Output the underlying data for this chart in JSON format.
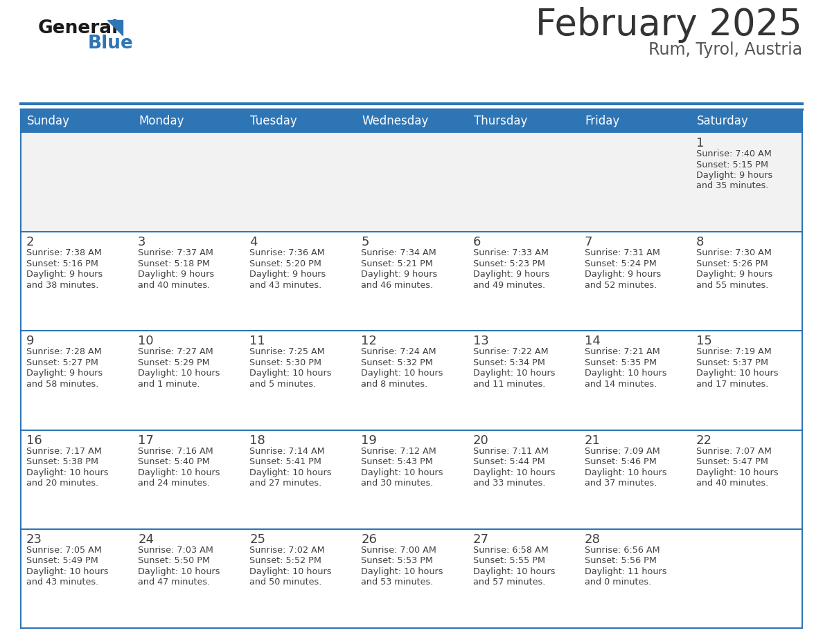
{
  "title": "February 2025",
  "subtitle": "Rum, Tyrol, Austria",
  "days_of_week": [
    "Sunday",
    "Monday",
    "Tuesday",
    "Wednesday",
    "Thursday",
    "Friday",
    "Saturday"
  ],
  "header_bg": "#2E75B6",
  "header_text": "#FFFFFF",
  "cell_bg": "#FFFFFF",
  "cell_bg_first": "#F2F2F2",
  "border_color": "#2E75B6",
  "divider_color": "#2E75B6",
  "text_color": "#404040",
  "day_num_color": "#404040",
  "title_color": "#333333",
  "subtitle_color": "#555555",
  "logo_general_color": "#1A1A1A",
  "logo_blue_color": "#2E75B6",
  "logo_triangle_color": "#2E75B6",
  "calendar_data": [
    [
      null,
      null,
      null,
      null,
      null,
      null,
      {
        "day": "1",
        "sunrise": "7:40 AM",
        "sunset": "5:15 PM",
        "daylight": "9 hours",
        "daylight2": "and 35 minutes."
      }
    ],
    [
      {
        "day": "2",
        "sunrise": "7:38 AM",
        "sunset": "5:16 PM",
        "daylight": "9 hours",
        "daylight2": "and 38 minutes."
      },
      {
        "day": "3",
        "sunrise": "7:37 AM",
        "sunset": "5:18 PM",
        "daylight": "9 hours",
        "daylight2": "and 40 minutes."
      },
      {
        "day": "4",
        "sunrise": "7:36 AM",
        "sunset": "5:20 PM",
        "daylight": "9 hours",
        "daylight2": "and 43 minutes."
      },
      {
        "day": "5",
        "sunrise": "7:34 AM",
        "sunset": "5:21 PM",
        "daylight": "9 hours",
        "daylight2": "and 46 minutes."
      },
      {
        "day": "6",
        "sunrise": "7:33 AM",
        "sunset": "5:23 PM",
        "daylight": "9 hours",
        "daylight2": "and 49 minutes."
      },
      {
        "day": "7",
        "sunrise": "7:31 AM",
        "sunset": "5:24 PM",
        "daylight": "9 hours",
        "daylight2": "and 52 minutes."
      },
      {
        "day": "8",
        "sunrise": "7:30 AM",
        "sunset": "5:26 PM",
        "daylight": "9 hours",
        "daylight2": "and 55 minutes."
      }
    ],
    [
      {
        "day": "9",
        "sunrise": "7:28 AM",
        "sunset": "5:27 PM",
        "daylight": "9 hours",
        "daylight2": "and 58 minutes."
      },
      {
        "day": "10",
        "sunrise": "7:27 AM",
        "sunset": "5:29 PM",
        "daylight": "10 hours",
        "daylight2": "and 1 minute."
      },
      {
        "day": "11",
        "sunrise": "7:25 AM",
        "sunset": "5:30 PM",
        "daylight": "10 hours",
        "daylight2": "and 5 minutes."
      },
      {
        "day": "12",
        "sunrise": "7:24 AM",
        "sunset": "5:32 PM",
        "daylight": "10 hours",
        "daylight2": "and 8 minutes."
      },
      {
        "day": "13",
        "sunrise": "7:22 AM",
        "sunset": "5:34 PM",
        "daylight": "10 hours",
        "daylight2": "and 11 minutes."
      },
      {
        "day": "14",
        "sunrise": "7:21 AM",
        "sunset": "5:35 PM",
        "daylight": "10 hours",
        "daylight2": "and 14 minutes."
      },
      {
        "day": "15",
        "sunrise": "7:19 AM",
        "sunset": "5:37 PM",
        "daylight": "10 hours",
        "daylight2": "and 17 minutes."
      }
    ],
    [
      {
        "day": "16",
        "sunrise": "7:17 AM",
        "sunset": "5:38 PM",
        "daylight": "10 hours",
        "daylight2": "and 20 minutes."
      },
      {
        "day": "17",
        "sunrise": "7:16 AM",
        "sunset": "5:40 PM",
        "daylight": "10 hours",
        "daylight2": "and 24 minutes."
      },
      {
        "day": "18",
        "sunrise": "7:14 AM",
        "sunset": "5:41 PM",
        "daylight": "10 hours",
        "daylight2": "and 27 minutes."
      },
      {
        "day": "19",
        "sunrise": "7:12 AM",
        "sunset": "5:43 PM",
        "daylight": "10 hours",
        "daylight2": "and 30 minutes."
      },
      {
        "day": "20",
        "sunrise": "7:11 AM",
        "sunset": "5:44 PM",
        "daylight": "10 hours",
        "daylight2": "and 33 minutes."
      },
      {
        "day": "21",
        "sunrise": "7:09 AM",
        "sunset": "5:46 PM",
        "daylight": "10 hours",
        "daylight2": "and 37 minutes."
      },
      {
        "day": "22",
        "sunrise": "7:07 AM",
        "sunset": "5:47 PM",
        "daylight": "10 hours",
        "daylight2": "and 40 minutes."
      }
    ],
    [
      {
        "day": "23",
        "sunrise": "7:05 AM",
        "sunset": "5:49 PM",
        "daylight": "10 hours",
        "daylight2": "and 43 minutes."
      },
      {
        "day": "24",
        "sunrise": "7:03 AM",
        "sunset": "5:50 PM",
        "daylight": "10 hours",
        "daylight2": "and 47 minutes."
      },
      {
        "day": "25",
        "sunrise": "7:02 AM",
        "sunset": "5:52 PM",
        "daylight": "10 hours",
        "daylight2": "and 50 minutes."
      },
      {
        "day": "26",
        "sunrise": "7:00 AM",
        "sunset": "5:53 PM",
        "daylight": "10 hours",
        "daylight2": "and 53 minutes."
      },
      {
        "day": "27",
        "sunrise": "6:58 AM",
        "sunset": "5:55 PM",
        "daylight": "10 hours",
        "daylight2": "and 57 minutes."
      },
      {
        "day": "28",
        "sunrise": "6:56 AM",
        "sunset": "5:56 PM",
        "daylight": "11 hours",
        "daylight2": "and 0 minutes."
      },
      null
    ]
  ]
}
